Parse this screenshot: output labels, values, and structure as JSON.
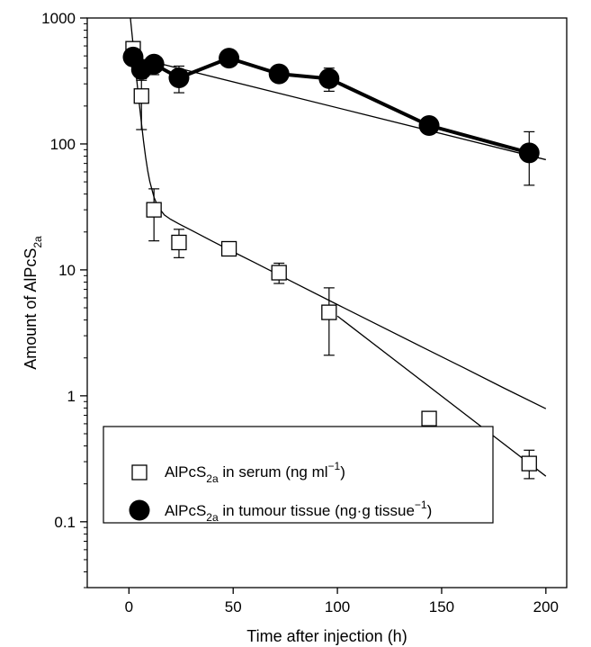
{
  "chart_data": {
    "type": "scatter",
    "xlabel": "Time after injection (h)",
    "ylabel_main": "Amount of AlPcS",
    "ylabel_sub": "2a",
    "ylog": true,
    "xlim": [
      -20,
      210
    ],
    "ylim": [
      0.03,
      1000
    ],
    "x_ticks": [
      0,
      50,
      100,
      150,
      200
    ],
    "x_tick_labels": [
      "0",
      "50",
      "100",
      "150",
      "200"
    ],
    "y_ticks": [
      0.1,
      1,
      10,
      100,
      1000
    ],
    "y_tick_labels": [
      "0.1",
      "1",
      "10",
      "100",
      "1000"
    ],
    "grid": false,
    "legend_position": "lower-left",
    "series": [
      {
        "name": "AlPcS2a in serum (ng ml−1)",
        "legend_main": "AlPcS",
        "legend_sub": "2a",
        "legend_tail": " in serum (ng ml",
        "legend_sup": "−1",
        "legend_end": ")",
        "marker": "open-square",
        "color": "#000000",
        "x": [
          2,
          6,
          12,
          24,
          48,
          72,
          96,
          144,
          192
        ],
        "y": [
          570,
          240,
          30,
          16.5,
          14.7,
          9.5,
          4.6,
          0.66,
          0.29
        ],
        "err_low": [
          null,
          130,
          17,
          12.5,
          null,
          7.8,
          2.1,
          null,
          0.22
        ],
        "err_high": [
          null,
          320,
          44,
          21,
          null,
          11.3,
          7.2,
          null,
          0.37
        ],
        "fit_curve": {
          "x": [
            0,
            1,
            2,
            3,
            4,
            5,
            6,
            7,
            8,
            9,
            10,
            12,
            14,
            17,
            20,
            24,
            30,
            40,
            50,
            60,
            80,
            100,
            120,
            140,
            160,
            180,
            200
          ],
          "y": [
            1300,
            890,
            612,
            423,
            293,
            206,
            146,
            105,
            78.5,
            61.4,
            50.3,
            37.8,
            31.6,
            27.3,
            25.2,
            23.2,
            20.6,
            16.9,
            13.9,
            11.5,
            7.79,
            5.3,
            3.62,
            2.47,
            1.69,
            1.15,
            0.79
          ]
        },
        "fit_tail": {
          "x": [
            100,
            200
          ],
          "y": [
            4.3,
            0.23
          ]
        }
      },
      {
        "name": "AlPcS2a in tumour tissue (ng.g tissue−1)",
        "legend_main": "AlPcS",
        "legend_sub": "2a",
        "legend_tail": " in tumour tissue (ng·g tissue",
        "legend_sup": "−1",
        "legend_end": ")",
        "marker": "filled-circle",
        "color": "#000000",
        "x": [
          2,
          6,
          12,
          24,
          48,
          72,
          96,
          144,
          192
        ],
        "y": [
          490,
          390,
          430,
          335,
          480,
          360,
          330,
          140,
          85
        ],
        "err_low": [
          420,
          330,
          355,
          255,
          420,
          320,
          262,
          125,
          47
        ],
        "err_high": [
          555,
          455,
          500,
          415,
          545,
          410,
          400,
          160,
          125
        ],
        "fit_line": {
          "x": [
            0,
            200
          ],
          "y": [
            500,
            75
          ]
        }
      }
    ]
  }
}
